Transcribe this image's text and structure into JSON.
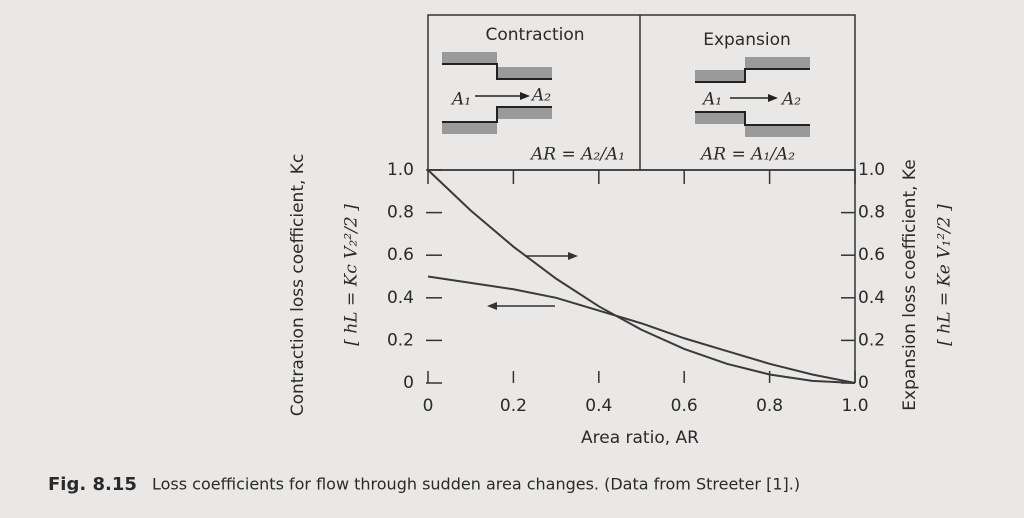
{
  "chart_data": {
    "type": "line",
    "x": [
      0,
      0.1,
      0.2,
      0.3,
      0.4,
      0.5,
      0.6,
      0.7,
      0.8,
      0.9,
      1
    ],
    "series": [
      {
        "name": "Contraction",
        "color": "#3a3a3a",
        "values": [
          0.5,
          0.47,
          0.44,
          0.4,
          0.34,
          0.28,
          0.21,
          0.15,
          0.09,
          0.04,
          0
        ]
      },
      {
        "name": "Expansion",
        "color": "#3a3a3a",
        "axis": "y2",
        "values": [
          1,
          0.81,
          0.64,
          0.49,
          0.36,
          0.25,
          0.16,
          0.09,
          0.04,
          0.01,
          0
        ]
      }
    ],
    "xlim": [
      0,
      1
    ],
    "xticks": [
      0,
      0.2,
      0.4,
      0.6,
      0.8,
      {
        "value": 1,
        "label": "1.0"
      }
    ],
    "ylim": [
      0,
      1
    ],
    "yticks": [
      0,
      0.2,
      0.4,
      0.6,
      0.8,
      {
        "value": 1,
        "label": "1.0"
      }
    ],
    "y2lim": [
      0,
      1
    ],
    "y2ticks": [
      0,
      0.2,
      0.4,
      0.6,
      0.8,
      {
        "value": 1,
        "label": "1.0"
      }
    ],
    "xlabel": "Area ratio, AR",
    "ylabel": "Contraction loss coefficient, Kc",
    "y2label": "Expansion loss coefficient, Ke",
    "yformula": "[ hL = Kc V₂²/2 ]",
    "y2formula": "[ hL = Ke V₁²/2 ]",
    "diagrams": {
      "contraction": {
        "a_in": "A₁",
        "a_out": "A₂",
        "ratio": "AR = A₂/A₁"
      },
      "expansion": {
        "a_in": "A₁",
        "a_out": "A₂",
        "ratio": "AR = A₁/A₂"
      }
    },
    "caption": {
      "number": "Fig. 8.15",
      "text": "Loss coefficients for flow through sudden area changes. (Data from Streeter [1].)"
    }
  }
}
